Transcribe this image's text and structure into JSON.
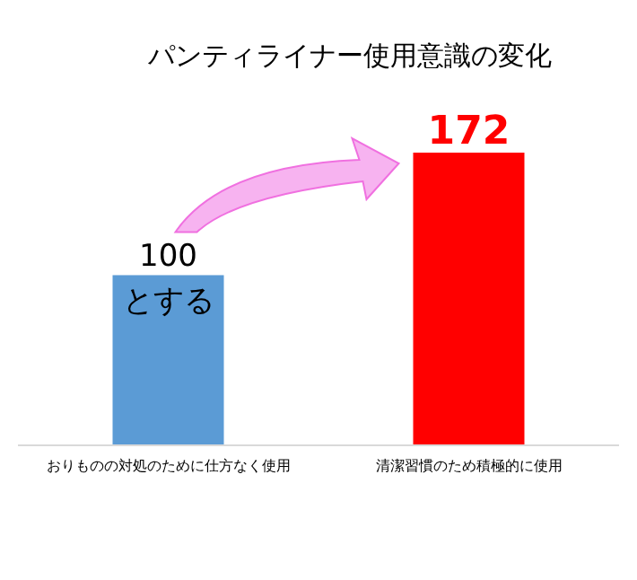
{
  "chart_data": {
    "type": "bar",
    "title": "パンティライナー使用意識の変化",
    "categories": [
      "おりものの対処のために仕方なく使用",
      "清潔習慣のため積極的に使用"
    ],
    "values": [
      100,
      172
    ],
    "colors": [
      "#5b9bd5",
      "#ff0000"
    ],
    "data_labels": true,
    "annotations": [
      "とする"
    ]
  }
}
